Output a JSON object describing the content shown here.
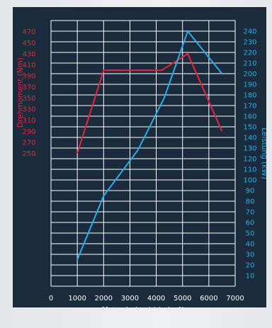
{
  "chart_data": {
    "type": "line",
    "xlabel": "Motordrehzahl (min⁻¹)",
    "x_ticks": [
      "0",
      "1000",
      "2000",
      "3000",
      "4000",
      "5000",
      "6000",
      "7000"
    ],
    "xlim": [
      0,
      7000
    ],
    "y_left": {
      "label": "Drehmoment (Nm)",
      "ticks": [
        "250",
        "270",
        "290",
        "310",
        "330",
        "350",
        "370",
        "390",
        "410",
        "430",
        "450",
        "470"
      ],
      "range": [
        10,
        490
      ],
      "color": "#e3263a"
    },
    "y_right": {
      "label": "Leistung (kW)",
      "ticks": [
        "10",
        "20",
        "30",
        "40",
        "50",
        "60",
        "70",
        "80",
        "90",
        "100",
        "110",
        "120",
        "130",
        "140",
        "150",
        "160",
        "170",
        "180",
        "190",
        "200",
        "210",
        "220",
        "230",
        "240"
      ],
      "range": [
        0,
        250
      ],
      "color": "#27aee6"
    },
    "series": [
      {
        "name": "Drehmoment (Nm)",
        "axis": "left",
        "color": "#e3263a",
        "points": [
          [
            1000,
            250
          ],
          [
            2000,
            400
          ],
          [
            4200,
            400
          ],
          [
            5200,
            430
          ],
          [
            6500,
            290
          ]
        ]
      },
      {
        "name": "Leistung (kW)",
        "axis": "right",
        "color": "#27aee6",
        "points": [
          [
            1000,
            25
          ],
          [
            2000,
            85
          ],
          [
            3300,
            128
          ],
          [
            4300,
            177
          ],
          [
            5200,
            240
          ],
          [
            6500,
            200
          ]
        ]
      }
    ],
    "grid": true
  }
}
